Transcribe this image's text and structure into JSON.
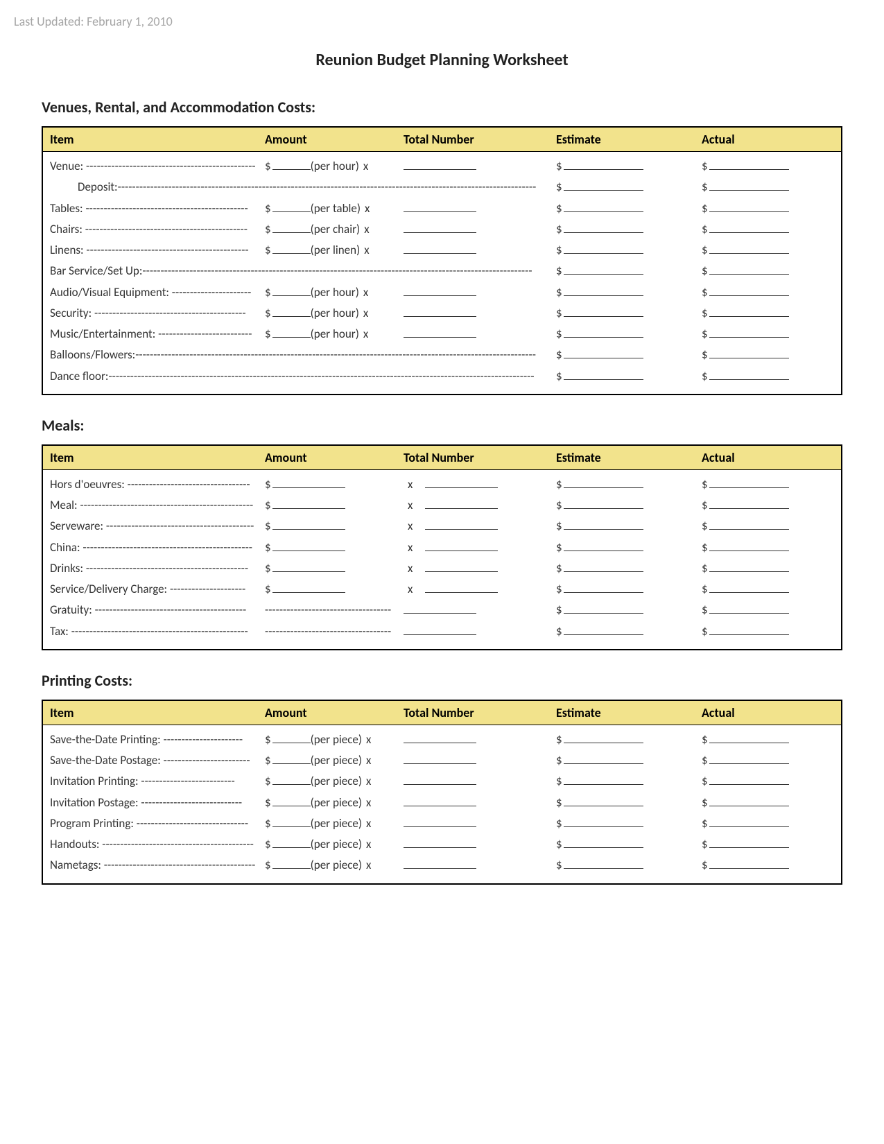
{
  "meta": {
    "last_updated": "Last Updated: February 1, 2010"
  },
  "title": "Reunion Budget Planning Worksheet",
  "header_labels": {
    "item": "Item",
    "amount": "Amount",
    "total": "Total Number",
    "estimate": "Estimate",
    "actual": "Actual"
  },
  "colors": {
    "header_bg": "#f2e38c",
    "border": "#000000",
    "text": "#333333",
    "muted": "#a6a6a6"
  },
  "sections": {
    "venues": {
      "title": "Venues, Rental, and Accommodation Costs:",
      "rows": [
        {
          "label": "Venue:",
          "unit": "(per hour)",
          "type": "unit"
        },
        {
          "label": "Deposit:",
          "type": "long",
          "indent": true
        },
        {
          "label": "Tables:",
          "unit": "(per table)",
          "type": "unit"
        },
        {
          "label": "Chairs:",
          "unit": "(per chair)",
          "type": "unit"
        },
        {
          "label": "Linens:",
          "unit": "(per linen)",
          "type": "unit"
        },
        {
          "label": "Bar Service/Set Up:",
          "type": "long"
        },
        {
          "label": "Audio/Visual Equipment:",
          "unit": "(per hour)",
          "type": "unit"
        },
        {
          "label": "Security:",
          "unit": "(per hour)",
          "type": "unit"
        },
        {
          "label": "Music/Entertainment:",
          "unit": "(per hour)",
          "type": "unit"
        },
        {
          "label": "Balloons/Flowers:",
          "type": "long"
        },
        {
          "label": "Dance floor:",
          "type": "long"
        }
      ]
    },
    "meals": {
      "title": "Meals:",
      "rows": [
        {
          "label": "Hors d'oeuvres:",
          "type": "amount_x"
        },
        {
          "label": "Meal:",
          "type": "amount_x"
        },
        {
          "label": "Serveware:",
          "type": "amount_x"
        },
        {
          "label": "China:",
          "type": "amount_x"
        },
        {
          "label": "Drinks:",
          "type": "amount_x"
        },
        {
          "label": "Service/Delivery Charge:",
          "type": "amount_x"
        },
        {
          "label": "Gratuity:",
          "type": "noprice"
        },
        {
          "label": "Tax:",
          "type": "noprice"
        }
      ]
    },
    "printing": {
      "title": "Printing Costs:",
      "rows": [
        {
          "label": "Save-the-Date Printing:",
          "unit": "(per piece)",
          "type": "unit"
        },
        {
          "label": "Save-the-Date Postage:",
          "unit": "(per piece)",
          "type": "unit"
        },
        {
          "label": "Invitation Printing:",
          "unit": "(per piece)",
          "type": "unit"
        },
        {
          "label": "Invitation Postage:",
          "unit": "(per piece)",
          "type": "unit"
        },
        {
          "label": "Program Printing:",
          "unit": "(per piece)",
          "type": "unit"
        },
        {
          "label": "Handouts:",
          "unit": "(per piece)",
          "type": "unit"
        },
        {
          "label": "Nametags:",
          "unit": "(per piece)",
          "type": "unit"
        }
      ]
    }
  }
}
